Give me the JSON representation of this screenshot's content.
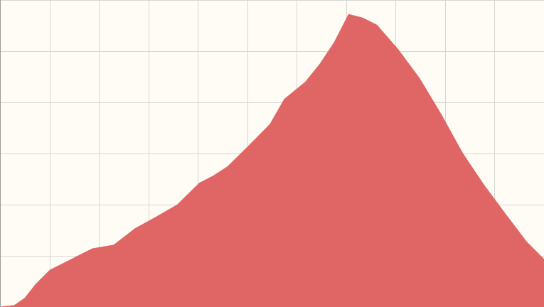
{
  "chart_data": {
    "type": "area",
    "x": [
      0,
      0.29,
      0.5,
      0.72,
      1.01,
      1.44,
      1.87,
      2.3,
      2.73,
      3.16,
      3.59,
      4.03,
      4.31,
      4.6,
      5.03,
      5.46,
      5.75,
      6.18,
      6.47,
      6.76,
      7.05,
      7.33,
      7.62,
      8.05,
      8.48,
      8.91,
      9.35,
      9.78,
      10.21,
      10.64,
      11
    ],
    "values": [
      0,
      0.03,
      0.17,
      0.44,
      0.72,
      0.93,
      1.14,
      1.21,
      1.53,
      1.76,
      2.0,
      2.42,
      2.56,
      2.74,
      3.15,
      3.57,
      4.06,
      4.4,
      4.75,
      5.17,
      5.72,
      5.65,
      5.51,
      5.03,
      4.47,
      3.78,
      3.01,
      2.39,
      1.83,
      1.28,
      0.93
    ],
    "color": "#e06666",
    "xlim": [
      0,
      11
    ],
    "ylim": [
      0,
      6
    ],
    "xticks": [
      0,
      1,
      2,
      3,
      4,
      5,
      6,
      7,
      8,
      9,
      10,
      11
    ],
    "yticks": [
      0,
      1,
      2,
      3,
      4,
      5,
      6
    ],
    "grid": true
  }
}
